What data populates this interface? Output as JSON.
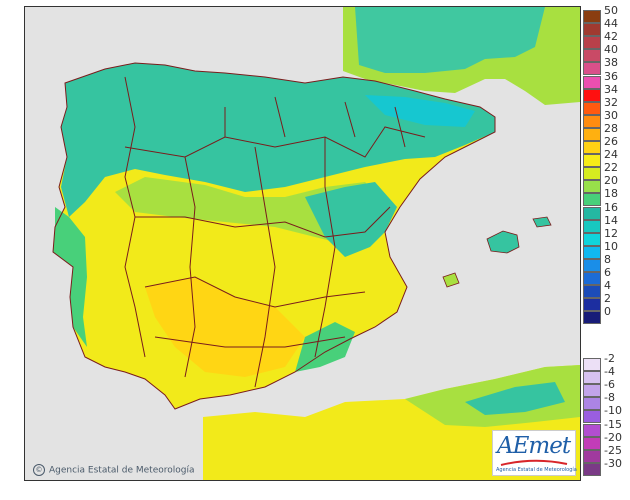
{
  "map": {
    "credit_text": "Agencia Estatal de Meteorología",
    "logo_text": "AEmet",
    "logo_subtext": "Agencia Estatal de Meteorología"
  },
  "legend": {
    "positive": [
      {
        "label": "50",
        "color": "#8a3d10"
      },
      {
        "label": "44",
        "color": "#a03a30"
      },
      {
        "label": "42",
        "color": "#b8404a"
      },
      {
        "label": "40",
        "color": "#c94a66"
      },
      {
        "label": "38",
        "color": "#d9508a"
      },
      {
        "label": "36",
        "color": "#ec4fb0"
      },
      {
        "label": "34",
        "color": "#ff1010"
      },
      {
        "label": "32",
        "color": "#ff5a10"
      },
      {
        "label": "30",
        "color": "#ff8c10"
      },
      {
        "label": "28",
        "color": "#ffb010"
      },
      {
        "label": "26",
        "color": "#ffd214"
      },
      {
        "label": "24",
        "color": "#f7ec18"
      },
      {
        "label": "22",
        "color": "#d6ec20"
      },
      {
        "label": "20",
        "color": "#98e04a"
      },
      {
        "label": "18",
        "color": "#48d07a"
      },
      {
        "label": "16",
        "color": "#24b8a2"
      },
      {
        "label": "14",
        "color": "#18c8c0"
      },
      {
        "label": "12",
        "color": "#10d4dc"
      },
      {
        "label": "10",
        "color": "#10b8f0"
      },
      {
        "label": "8",
        "color": "#1a8ee8"
      },
      {
        "label": "6",
        "color": "#1c6cd6"
      },
      {
        "label": "4",
        "color": "#1c4cb8"
      },
      {
        "label": "2",
        "color": "#1c2ea0"
      },
      {
        "label": "0",
        "color": "#181c78"
      }
    ],
    "negative": [
      {
        "label": "-2",
        "color": "#ece0f6"
      },
      {
        "label": "-4",
        "color": "#d6c2f0"
      },
      {
        "label": "-6",
        "color": "#c2a4ea"
      },
      {
        "label": "-8",
        "color": "#ac84e4"
      },
      {
        "label": "-10",
        "color": "#9a5ee0"
      },
      {
        "label": "-15",
        "color": "#b24ed0"
      },
      {
        "label": "-20",
        "color": "#c23cb8"
      },
      {
        "label": "-25",
        "color": "#a03a9e"
      },
      {
        "label": "-30",
        "color": "#7a3a86"
      }
    ]
  },
  "colors": {
    "sea": "#e3e3e3",
    "land_default": "#e0e0e0",
    "cool_green": "#36c4a0",
    "teal": "#20b4a0",
    "light_green": "#a8e040",
    "yellow": "#f2ea1a",
    "warm_yellow": "#ffd614",
    "border": "#7a1c1c"
  }
}
